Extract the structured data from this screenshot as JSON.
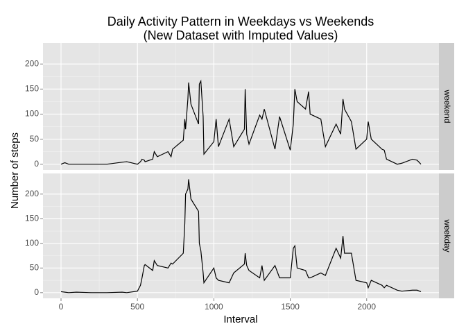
{
  "chart_data": {
    "type": "line",
    "title": [
      "Daily Activity Pattern in Weekdays vs Weekends",
      "(New Dataset with Imputed Values)"
    ],
    "xlabel": "Interval",
    "ylabel": "Number of steps",
    "xlim": [
      -118,
      2473
    ],
    "xticks": [
      0,
      500,
      1000,
      1500,
      2000
    ],
    "ylim": [
      -11.5,
      241.9
    ],
    "yticks": [
      0,
      50,
      100,
      150,
      200
    ],
    "grid": true,
    "x": [
      0,
      25,
      50,
      100,
      200,
      300,
      400,
      430,
      500,
      520,
      530,
      545,
      550,
      600,
      610,
      630,
      700,
      720,
      730,
      800,
      810,
      815,
      830,
      835,
      850,
      900,
      905,
      915,
      930,
      935,
      1000,
      1015,
      1030,
      1100,
      1130,
      1200,
      1205,
      1215,
      1230,
      1300,
      1315,
      1330,
      1400,
      1430,
      1500,
      1520,
      1530,
      1545,
      1600,
      1620,
      1630,
      1700,
      1730,
      1800,
      1830,
      1845,
      1855,
      1900,
      1930,
      2000,
      2010,
      2030,
      2100,
      2115,
      2130,
      2200,
      2230,
      2300,
      2330,
      2355
    ],
    "series": [
      {
        "name": "weekend",
        "color": "#000000",
        "values": [
          0,
          3,
          0,
          0,
          0,
          0,
          4,
          5,
          0,
          5,
          10,
          8,
          5,
          10,
          25,
          15,
          25,
          15,
          30,
          48,
          90,
          70,
          130,
          163,
          120,
          80,
          160,
          166,
          95,
          20,
          45,
          90,
          35,
          90,
          35,
          70,
          150,
          60,
          40,
          98,
          90,
          110,
          30,
          95,
          28,
          80,
          150,
          125,
          110,
          145,
          100,
          90,
          35,
          80,
          60,
          130,
          110,
          85,
          30,
          50,
          85,
          50,
          30,
          28,
          10,
          0,
          2,
          10,
          8,
          0
        ]
      },
      {
        "name": "weekday",
        "color": "#000000",
        "values": [
          2,
          1,
          0,
          1,
          0,
          0,
          1,
          0,
          3,
          15,
          30,
          55,
          57,
          45,
          65,
          55,
          50,
          60,
          58,
          80,
          140,
          200,
          210,
          230,
          190,
          165,
          100,
          85,
          40,
          20,
          50,
          30,
          25,
          20,
          40,
          58,
          80,
          55,
          45,
          30,
          55,
          25,
          55,
          30,
          30,
          90,
          95,
          50,
          45,
          30,
          30,
          40,
          35,
          90,
          70,
          115,
          80,
          80,
          25,
          20,
          10,
          25,
          15,
          10,
          15,
          5,
          3,
          5,
          5,
          2
        ]
      }
    ]
  }
}
